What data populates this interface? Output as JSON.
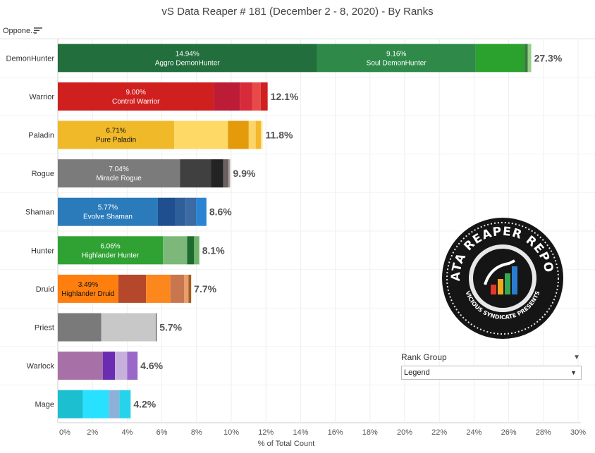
{
  "title": "vS Data Reaper #  181 (December 2 - 8, 2020) - By Ranks",
  "opponent_header": "Oppone..",
  "sort_icon": "sort-descending-icon",
  "rank_group": {
    "title": "Rank Group",
    "value": "Legend"
  },
  "logo": {
    "name": "data-reaper-report-logo",
    "text_top": "DATA REAPER REPORT",
    "text_bottom": "VICIOUS SYNDICATE PRESENTS"
  },
  "chart_data": {
    "type": "bar",
    "orientation": "horizontal",
    "stacked": true,
    "xlabel": "% of Total Count",
    "xlim": [
      0,
      30
    ],
    "xticks": [
      "0%",
      "2%",
      "4%",
      "6%",
      "8%",
      "10%",
      "12%",
      "14%",
      "16%",
      "18%",
      "20%",
      "22%",
      "24%",
      "26%",
      "28%",
      "30%"
    ],
    "grid": true,
    "categories": [
      {
        "name": "DemonHunter",
        "total": "27.3%",
        "segments": [
          {
            "value": 14.94,
            "color": "#226e3c",
            "pct": "14.94%",
            "label": "Aggro DemonHunter"
          },
          {
            "value": 9.16,
            "color": "#2f8a49",
            "pct": "9.16%",
            "label": "Soul DemonHunter"
          },
          {
            "value": 2.8,
            "color": "#2ba12e"
          },
          {
            "value": 0.2,
            "color": "#3a7a3c"
          },
          {
            "value": 0.2,
            "color": "#98cf87"
          }
        ]
      },
      {
        "name": "Warrior",
        "total": "12.1%",
        "segments": [
          {
            "value": 9.0,
            "color": "#d01f1f",
            "pct": "9.00%",
            "label": "Control Warrior"
          },
          {
            "value": 1.5,
            "color": "#bc1c36"
          },
          {
            "value": 0.7,
            "color": "#d82b3a"
          },
          {
            "value": 0.5,
            "color": "#e84a4a"
          },
          {
            "value": 0.4,
            "color": "#d02020"
          }
        ]
      },
      {
        "name": "Paladin",
        "total": "11.8%",
        "segments": [
          {
            "value": 6.71,
            "color": "#f0b92a",
            "pct": "6.71%",
            "label": "Pure Paladin",
            "dark": true
          },
          {
            "value": 3.1,
            "color": "#ffd966"
          },
          {
            "value": 1.2,
            "color": "#e49a0a"
          },
          {
            "value": 0.4,
            "color": "#fbd567"
          },
          {
            "value": 0.3,
            "color": "#f4b82c"
          },
          {
            "value": 0.1,
            "color": "#ffe89a"
          }
        ]
      },
      {
        "name": "Rogue",
        "total": "9.9%",
        "segments": [
          {
            "value": 7.04,
            "color": "#7b7b7b",
            "pct": "7.04%",
            "label": "Miracle Rogue"
          },
          {
            "value": 1.8,
            "color": "#404040"
          },
          {
            "value": 0.7,
            "color": "#232323"
          },
          {
            "value": 0.3,
            "color": "#6a6060"
          },
          {
            "value": 0.1,
            "color": "#a8a098"
          }
        ]
      },
      {
        "name": "Shaman",
        "total": "8.6%",
        "segments": [
          {
            "value": 5.77,
            "color": "#2b7bba",
            "pct": "5.77%",
            "label": "Evolve Shaman"
          },
          {
            "value": 1.0,
            "color": "#1f4f8f"
          },
          {
            "value": 0.6,
            "color": "#2f5f99"
          },
          {
            "value": 0.6,
            "color": "#3c6aa3"
          },
          {
            "value": 0.6,
            "color": "#2b84d2"
          }
        ]
      },
      {
        "name": "Hunter",
        "total": "8.1%",
        "segments": [
          {
            "value": 6.06,
            "color": "#2fa233",
            "pct": "6.06%",
            "label": "Highlander Hunter"
          },
          {
            "value": 1.4,
            "color": "#7db87a"
          },
          {
            "value": 0.4,
            "color": "#1f6b2f"
          },
          {
            "value": 0.3,
            "color": "#6fb56a"
          }
        ]
      },
      {
        "name": "Druid",
        "total": "7.7%",
        "segments": [
          {
            "value": 3.49,
            "color": "#ff7f0e",
            "pct": "3.49%",
            "label": "Highlander Druid",
            "dark": true
          },
          {
            "value": 1.6,
            "color": "#b5482a"
          },
          {
            "value": 1.4,
            "color": "#fc871d"
          },
          {
            "value": 0.8,
            "color": "#c9764f"
          },
          {
            "value": 0.25,
            "color": "#e89e6a"
          },
          {
            "value": 0.15,
            "color": "#a85b1f"
          }
        ]
      },
      {
        "name": "Priest",
        "total": "5.7%",
        "segments": [
          {
            "value": 2.5,
            "color": "#7a7a7a"
          },
          {
            "value": 3.15,
            "color": "#c8c8c8"
          },
          {
            "value": 0.05,
            "color": "#555555"
          }
        ]
      },
      {
        "name": "Warlock",
        "total": "4.6%",
        "segments": [
          {
            "value": 2.6,
            "color": "#a771a7"
          },
          {
            "value": 0.7,
            "color": "#6a2db1"
          },
          {
            "value": 0.7,
            "color": "#c7b1dc"
          },
          {
            "value": 0.6,
            "color": "#9a68c8"
          }
        ]
      },
      {
        "name": "Mage",
        "total": "4.2%",
        "segments": [
          {
            "value": 1.45,
            "color": "#1bbfd0"
          },
          {
            "value": 1.5,
            "color": "#27e1ff"
          },
          {
            "value": 0.6,
            "color": "#8eb0d8"
          },
          {
            "value": 0.65,
            "color": "#27d3ea"
          }
        ]
      }
    ]
  }
}
